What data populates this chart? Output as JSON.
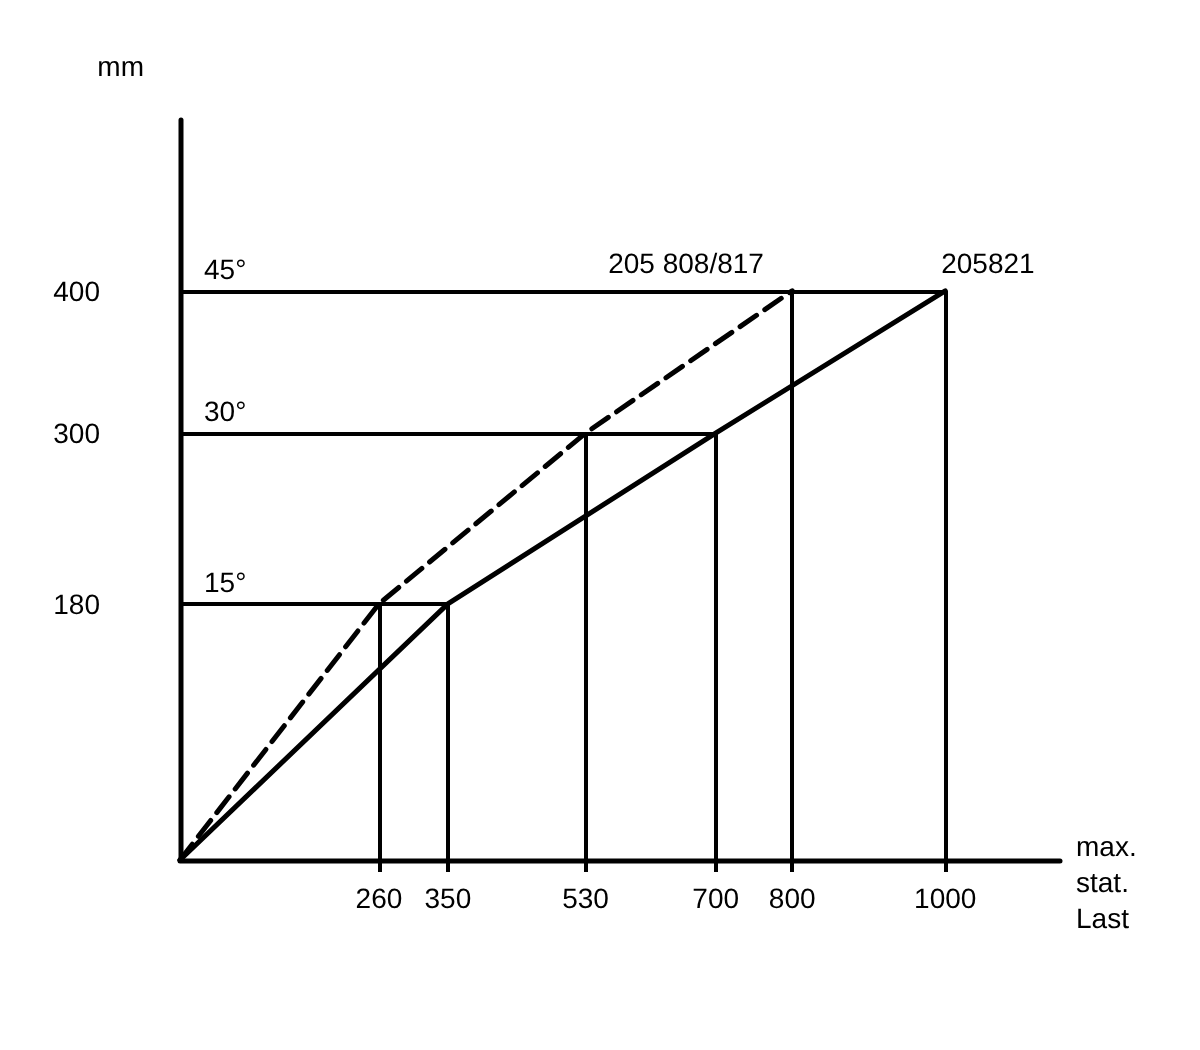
{
  "chart_data": {
    "type": "line",
    "xlabel": "max. stat. Last",
    "ylabel": "mm",
    "xlim": [
      0,
      1150
    ],
    "ylim": [
      0,
      520
    ],
    "xticks": [
      260,
      350,
      530,
      700,
      800,
      1000
    ],
    "yticks": [
      180,
      300,
      400
    ],
    "grid": false,
    "legend": false,
    "marker": "none",
    "series": [
      {
        "name": "205 808/817",
        "color": "#000000",
        "line_style": "dashed",
        "x": [
          0,
          260,
          530,
          800
        ],
        "values": [
          0,
          180,
          300,
          400
        ]
      },
      {
        "name": "205821",
        "color": "#000000",
        "line_style": "solid",
        "x": [
          0,
          350,
          700,
          1000
        ],
        "values": [
          0,
          180,
          300,
          400
        ]
      }
    ],
    "ref_lines": [
      {
        "axis": "y",
        "value": 180
      },
      {
        "axis": "y",
        "value": 300
      },
      {
        "axis": "y",
        "value": 400
      },
      {
        "axis": "x",
        "value": 260
      },
      {
        "axis": "x",
        "value": 350
      },
      {
        "axis": "x",
        "value": 530
      },
      {
        "axis": "x",
        "value": 700
      },
      {
        "axis": "x",
        "value": 800
      },
      {
        "axis": "x",
        "value": 1000
      }
    ],
    "annotations": [
      {
        "text": "15°",
        "y": 180
      },
      {
        "text": "30°",
        "y": 300
      },
      {
        "text": "45°",
        "y": 400
      }
    ]
  }
}
